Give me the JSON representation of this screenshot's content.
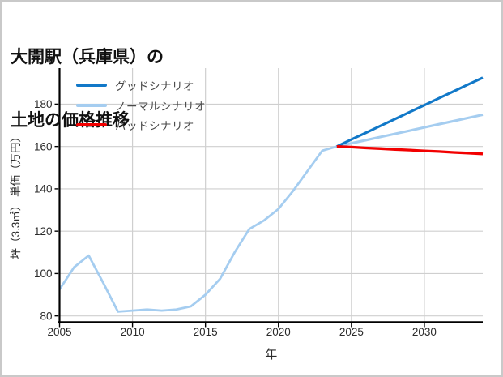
{
  "header": {
    "title_line1": "大開駅（兵庫県）の",
    "title_line2": "土地の価格推移"
  },
  "chart_data": {
    "type": "line",
    "title": "大開駅（兵庫県）の 土地の価格推移",
    "xlabel": "年",
    "ylabel": "坪（3.3㎡） 単価（万円）",
    "xlim": [
      2005,
      2034
    ],
    "ylim": [
      77,
      197
    ],
    "x_ticks": [
      2005,
      2010,
      2015,
      2020,
      2025,
      2030
    ],
    "y_ticks": [
      80,
      100,
      120,
      140,
      160,
      180
    ],
    "grid": true,
    "legend_position": "upper-left",
    "axis_color": "#000000",
    "gridline_color": "#cfcfcf",
    "tick_label_color": "#2b2b2b",
    "series": [
      {
        "id": "history",
        "name": "",
        "color": "#a5cdf0",
        "x": [
          2005,
          2006,
          2007,
          2008,
          2009,
          2010,
          2011,
          2012,
          2013,
          2014,
          2015,
          2016,
          2017,
          2018,
          2019,
          2020,
          2021,
          2022,
          2023,
          2024
        ],
        "values": [
          92.5,
          103,
          108.5,
          95.5,
          82,
          82.5,
          83,
          82.5,
          83,
          84.5,
          90,
          97.5,
          110,
          121,
          125,
          130.5,
          139,
          148.5,
          158,
          160
        ]
      },
      {
        "id": "good",
        "name": "グッドシナリオ",
        "color": "#1178c8",
        "x": [
          2024,
          2025,
          2026,
          2027,
          2028,
          2029,
          2030,
          2031,
          2032,
          2033,
          2034
        ],
        "values": [
          160,
          163.3,
          166.5,
          169.8,
          173,
          176.3,
          179.5,
          182.8,
          186,
          189.3,
          192.5
        ]
      },
      {
        "id": "normal",
        "name": "ノーマルシナリオ",
        "color": "#a5cdf0",
        "x": [
          2024,
          2025,
          2026,
          2027,
          2028,
          2029,
          2030,
          2031,
          2032,
          2033,
          2034
        ],
        "values": [
          160,
          161.5,
          163,
          164.5,
          166,
          167.5,
          169,
          170.5,
          172,
          173.5,
          175
        ]
      },
      {
        "id": "bad",
        "name": "バッドシナリオ",
        "color": "#f20000",
        "x": [
          2024,
          2025,
          2026,
          2027,
          2028,
          2029,
          2030,
          2031,
          2032,
          2033,
          2034
        ],
        "values": [
          160,
          159.7,
          159.3,
          159,
          158.6,
          158.3,
          157.9,
          157.6,
          157.2,
          156.9,
          156.5
        ]
      }
    ]
  }
}
